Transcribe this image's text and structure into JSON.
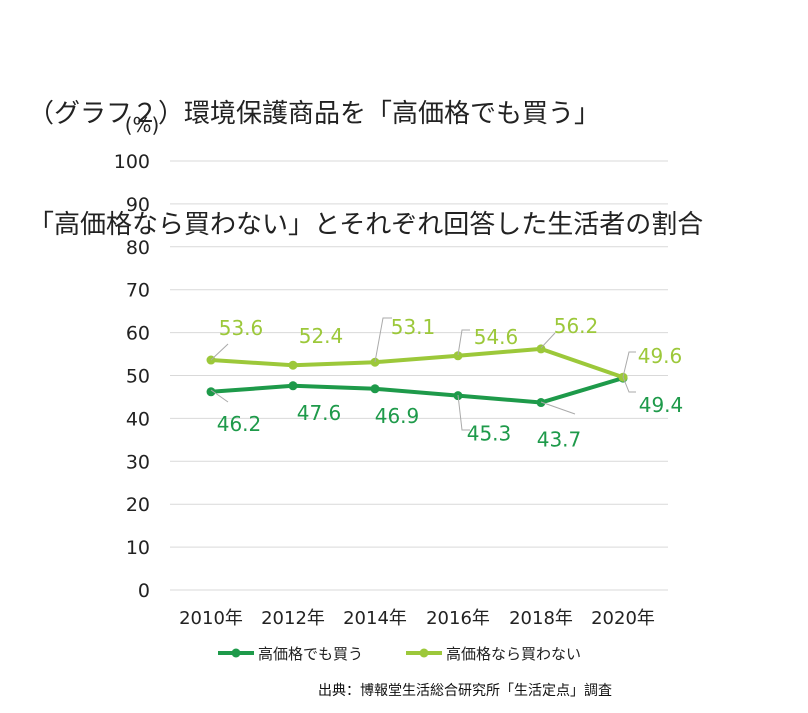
{
  "title_lines": [
    "（グラフ２）環境保護商品を「高価格でも買う」",
    "「高価格なら買わない」とそれぞれ回答した生活者の割合"
  ],
  "source": "出典：博報堂生活総合研究所「生活定点」調査",
  "colors": {
    "buy": "#1e9a4a",
    "not_buy": "#9cc83a",
    "grid": "#d9d9d9",
    "axis_text": "#222222",
    "leader": "#aaaaaa"
  },
  "chart_data": {
    "type": "line",
    "title": "（グラフ２）環境保護商品を「高価格でも買う」「高価格なら買わない」とそれぞれ回答した生活者の割合",
    "ylabel": "(%)",
    "xlabel": "",
    "ylim": [
      0,
      100
    ],
    "yticks": [
      "0",
      "10",
      "20",
      "30",
      "40",
      "50",
      "60",
      "70",
      "80",
      "90",
      "100"
    ],
    "categories": [
      "2010年",
      "2012年",
      "2014年",
      "2016年",
      "2018年",
      "2020年"
    ],
    "series": [
      {
        "name": "高価格でも買う",
        "values": [
          46.2,
          47.6,
          46.9,
          45.3,
          43.7,
          49.4
        ],
        "labels": [
          "46.2",
          "47.6",
          "46.9",
          "45.3",
          "43.7",
          "49.4"
        ]
      },
      {
        "name": "高価格なら買わない",
        "values": [
          53.6,
          52.4,
          53.1,
          54.6,
          56.2,
          49.6
        ],
        "labels": [
          "53.6",
          "52.4",
          "53.1",
          "54.6",
          "56.2",
          "49.6"
        ]
      }
    ],
    "legend_position": "bottom"
  }
}
